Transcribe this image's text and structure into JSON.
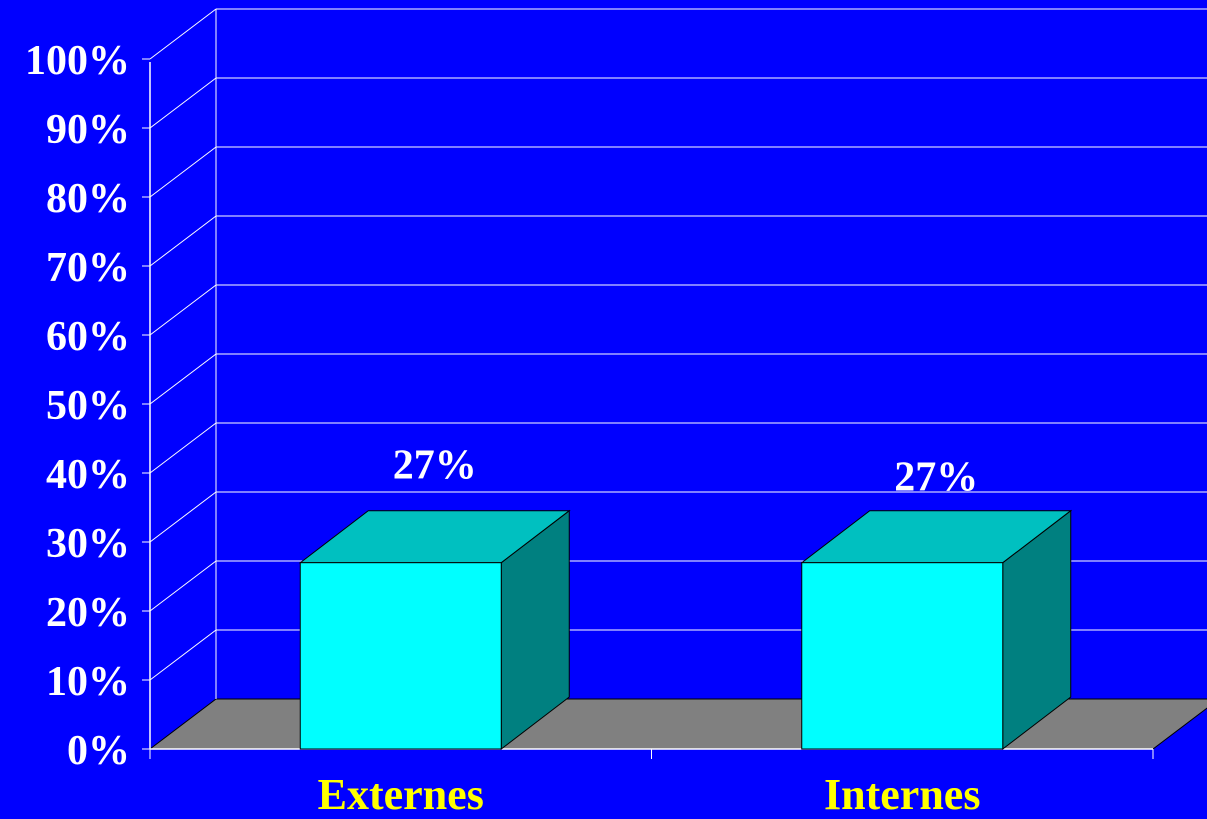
{
  "chart_data": {
    "type": "bar",
    "categories": [
      "Externes",
      "Internes"
    ],
    "values": [
      27,
      27
    ],
    "data_labels": [
      "27%",
      "27%"
    ],
    "ylim": [
      0,
      100
    ],
    "yticks": [
      "0%",
      "10%",
      "20%",
      "30%",
      "40%",
      "50%",
      "60%",
      "70%",
      "80%",
      "90%",
      "100%"
    ],
    "title": "",
    "xlabel": "",
    "ylabel": "",
    "grid": true,
    "legend": "none",
    "three_d": true
  },
  "colors": {
    "background": "#0000ff",
    "floor": "#808080",
    "gridline": "#ffffff",
    "bar_front": "#00ffff",
    "bar_top": "#00c0c0",
    "bar_side": "#008080",
    "category_label": "#ffff00",
    "tick_label": "#ffffff"
  }
}
